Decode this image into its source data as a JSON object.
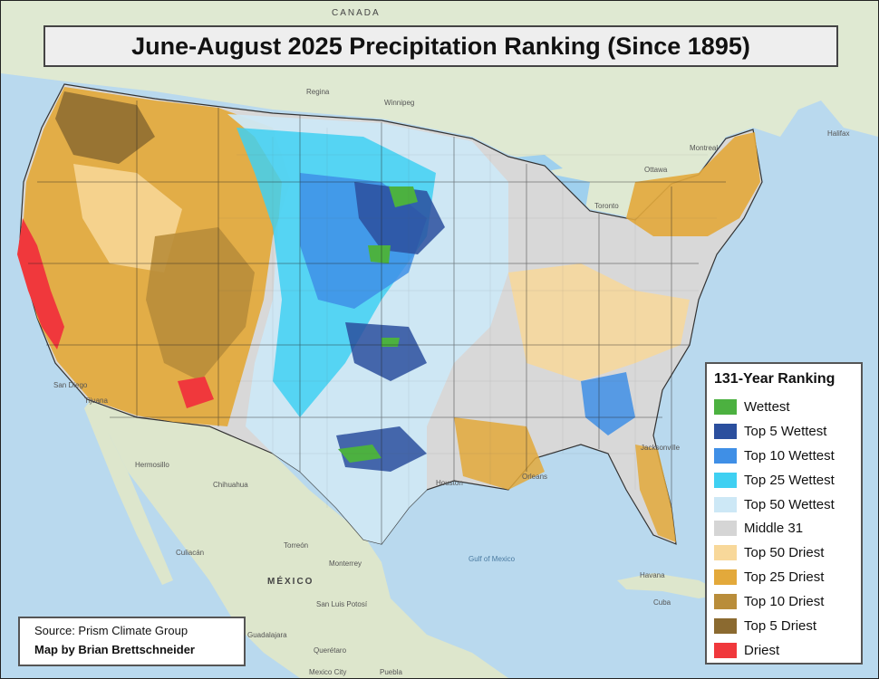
{
  "title": "June-August 2025 Precipitation Ranking (Since 1895)",
  "legend": {
    "title": "131-Year Ranking",
    "items": [
      {
        "label": "Wettest",
        "color": "#4cb140"
      },
      {
        "label": "Top 5 Wettest",
        "color": "#2b4f9e"
      },
      {
        "label": "Top 10 Wettest",
        "color": "#3f8fe6"
      },
      {
        "label": "Top 25 Wettest",
        "color": "#3fd0f2"
      },
      {
        "label": "Top 50 Wettest",
        "color": "#cde8f6"
      },
      {
        "label": "Middle 31",
        "color": "#d5d5d5"
      },
      {
        "label": "Top 50 Driest",
        "color": "#f8d89a"
      },
      {
        "label": "Top 25 Driest",
        "color": "#e3a93b"
      },
      {
        "label": "Top 10 Driest",
        "color": "#b98d3a"
      },
      {
        "label": "Top 5 Driest",
        "color": "#8b6a30"
      },
      {
        "label": "Driest",
        "color": "#f0383c"
      }
    ]
  },
  "source": {
    "line1": "Source: Prism Climate Group",
    "line2": "Map by Brian Brettschneider"
  },
  "basemap_labels": {
    "canada": "CANADA",
    "mexico": "MÉXICO",
    "gulf": "Gulf of Mexico",
    "cities": [
      "Regina",
      "Winnipeg",
      "Ottawa",
      "Montreal",
      "Toronto",
      "Halifax",
      "Jacksonville",
      "Orleans",
      "Houston",
      "Tijuana",
      "San Diego",
      "Hermosillo",
      "Chihuahua",
      "Torreón",
      "Monterrey",
      "Culiacán",
      "San Luis Potosí",
      "Querétaro",
      "Guadalajara",
      "Mexico City",
      "Puebla",
      "Havana",
      "Cuba"
    ]
  }
}
